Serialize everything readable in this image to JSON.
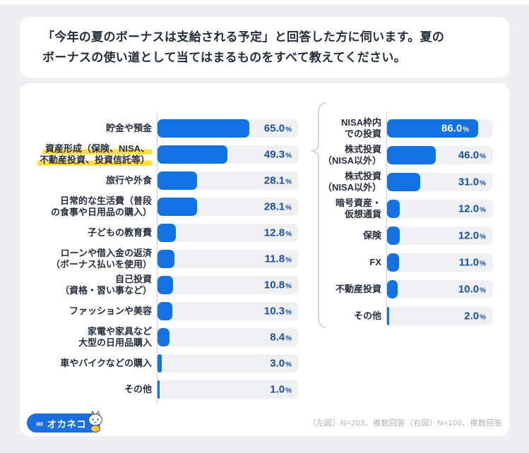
{
  "title": {
    "lines": [
      "「今年の夏のボーナスは支給される予定」と回答した方に伺います。夏の",
      "ボーナスの使い道として当てはまるものをすべて教えてください。"
    ]
  },
  "colors": {
    "bar_blue": "#1173e3",
    "track_gray": "#eef0f4",
    "value_text": "#174e9e",
    "label_text": "#242d3b",
    "highlight_yellow": "#ffdf3d",
    "page_bg": "#edeff2",
    "note_text": "#abb0b7"
  },
  "footer": {
    "logo_symbol": "∞",
    "logo_text": "オカネコ",
    "note": "（左図）N=203、複数回答（右図）N=100、複数回答"
  },
  "chart_data": [
    {
      "type": "bar",
      "orientation": "horizontal",
      "position": "left",
      "title": "夏のボーナスの使い道（全体）",
      "unit": "%",
      "xlim": [
        0,
        100
      ],
      "sample_note": "N=203、複数回答",
      "rows": [
        {
          "label": "貯金や預金",
          "label_lines": [
            "貯金や預金"
          ],
          "value": 65.0,
          "highlighted": false
        },
        {
          "label": "資産形成（保険、NISA、不動産投資、投資信託等）",
          "label_lines": [
            "資産形成（保険、NISA、",
            "不動産投資、投資信託等）"
          ],
          "value": 49.3,
          "highlighted": true
        },
        {
          "label": "旅行や外食",
          "label_lines": [
            "旅行や外食"
          ],
          "value": 28.1,
          "highlighted": false
        },
        {
          "label": "日常的な生活費（普段の食事や日用品の購入）",
          "label_lines": [
            "日常的な生活費（普段",
            "の食事や日用品の購入）"
          ],
          "value": 28.1,
          "highlighted": false
        },
        {
          "label": "子どもの教育費",
          "label_lines": [
            "子どもの教育費"
          ],
          "value": 12.8,
          "highlighted": false
        },
        {
          "label": "ローンや借入金の返済（ボーナス払いを使用）",
          "label_lines": [
            "ローンや借入金の返済",
            "（ボーナス払いを使用）"
          ],
          "value": 11.8,
          "highlighted": false
        },
        {
          "label": "自己投資（資格・習い事など）",
          "label_lines": [
            "自己投資",
            "（資格・習い事など）"
          ],
          "value": 10.8,
          "highlighted": false
        },
        {
          "label": "ファッションや美容",
          "label_lines": [
            "ファッションや美容"
          ],
          "value": 10.3,
          "highlighted": false
        },
        {
          "label": "家電や家具など大型の日用品購入",
          "label_lines": [
            "家電や家具など",
            "大型の日用品購入"
          ],
          "value": 8.4,
          "highlighted": false
        },
        {
          "label": "車やバイクなどの購入",
          "label_lines": [
            "車やバイクなどの購入"
          ],
          "value": 3.0,
          "highlighted": false
        },
        {
          "label": "その他",
          "label_lines": [
            "その他"
          ],
          "value": 1.0,
          "highlighted": false
        }
      ]
    },
    {
      "type": "bar",
      "orientation": "horizontal",
      "position": "right",
      "title": "資産形成の内訳",
      "unit": "%",
      "xlim": [
        0,
        100
      ],
      "sample_note": "N=100、複数回答",
      "rows": [
        {
          "label": "NISA枠内での投資",
          "label_lines": [
            "NISA枠内",
            "での投資"
          ],
          "value": 86.0,
          "value_inside": true
        },
        {
          "label": "株式投資（NISA以外）",
          "label_lines": [
            "株式投資",
            "（NISA以外）"
          ],
          "value": 46.0
        },
        {
          "label": "株式投資（NISA以外）",
          "label_lines": [
            "株式投資",
            "（NISA以外）"
          ],
          "value": 31.0
        },
        {
          "label": "暗号資産・仮想通貨",
          "label_lines": [
            "暗号資産・",
            "仮想通貨"
          ],
          "value": 12.0
        },
        {
          "label": "保険",
          "label_lines": [
            "保険"
          ],
          "value": 12.0
        },
        {
          "label": "FX",
          "label_lines": [
            "FX"
          ],
          "value": 11.0
        },
        {
          "label": "不動産投資",
          "label_lines": [
            "不動産投資"
          ],
          "value": 10.0
        },
        {
          "label": "その他",
          "label_lines": [
            "その他"
          ],
          "value": 2.0
        }
      ]
    }
  ]
}
